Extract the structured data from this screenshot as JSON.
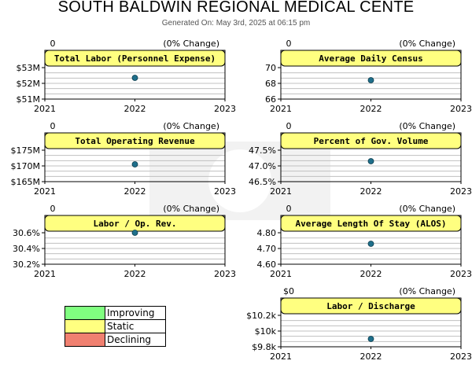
{
  "header": {
    "title": "SOUTH BALDWIN REGIONAL MEDICAL CENTE",
    "generated": "Generated On: May 3rd, 2025 at 06:15 pm"
  },
  "colors": {
    "banner": "#ffff80",
    "point": "#1f6f8b",
    "grid": "#c0c0c0",
    "improving": "#80ff80",
    "static": "#ffff80",
    "declining": "#f08070"
  },
  "legend": [
    {
      "label": "Improving",
      "color": "#80ff80"
    },
    {
      "label": "Static",
      "color": "#ffff80"
    },
    {
      "label": "Declining",
      "color": "#f08070"
    }
  ],
  "chart_data": [
    {
      "type": "scatter",
      "title": "Total Labor (Personnel Expense)",
      "prior": "0",
      "change": "(0% Change)",
      "x": [
        "2021",
        "2022",
        "2023"
      ],
      "yticks": [
        "$53M",
        "$52M",
        "$51M"
      ],
      "ylim": [
        51,
        53
      ],
      "points": [
        {
          "x": "2022",
          "y": 52.35
        }
      ]
    },
    {
      "type": "scatter",
      "title": "Average Daily Census",
      "prior": "0",
      "change": "(0% Change)",
      "x": [
        "2021",
        "2022",
        "2023"
      ],
      "yticks": [
        "70",
        "68",
        "66"
      ],
      "ylim": [
        66,
        70
      ],
      "points": [
        {
          "x": "2022",
          "y": 68.4
        }
      ]
    },
    {
      "type": "scatter",
      "title": "Total Operating Revenue",
      "prior": "0",
      "change": "(0% Change)",
      "x": [
        "2021",
        "2022",
        "2023"
      ],
      "yticks": [
        "$175M",
        "$170M",
        "$165M"
      ],
      "ylim": [
        165,
        175
      ],
      "points": [
        {
          "x": "2022",
          "y": 170.5
        }
      ]
    },
    {
      "type": "scatter",
      "title": "Percent of Gov. Volume",
      "prior": "0",
      "change": "(0% Change)",
      "x": [
        "2021",
        "2022",
        "2023"
      ],
      "yticks": [
        "47.5%",
        "47.0%",
        "46.5%"
      ],
      "ylim": [
        46.5,
        47.5
      ],
      "points": [
        {
          "x": "2022",
          "y": 47.15
        }
      ]
    },
    {
      "type": "scatter",
      "title": "Labor / Op. Rev.",
      "prior": "0",
      "change": "(0% Change)",
      "x": [
        "2021",
        "2022",
        "2023"
      ],
      "yticks": [
        "30.6%",
        "30.4%",
        "30.2%"
      ],
      "ylim": [
        30.2,
        30.6
      ],
      "points": [
        {
          "x": "2022",
          "y": 30.6
        }
      ]
    },
    {
      "type": "scatter",
      "title": "Average Length Of Stay (ALOS)",
      "prior": "0",
      "change": "(0% Change)",
      "x": [
        "2021",
        "2022",
        "2023"
      ],
      "yticks": [
        "4.80",
        "4.70",
        "4.60"
      ],
      "ylim": [
        4.6,
        4.8
      ],
      "points": [
        {
          "x": "2022",
          "y": 4.73
        }
      ]
    },
    {
      "type": "scatter",
      "title": "Labor / Discharge",
      "prior": "$0",
      "change": "(0% Change)",
      "x": [
        "2021",
        "2022",
        "2023"
      ],
      "yticks": [
        "$10.2k",
        "$10k",
        "$9.8k"
      ],
      "ylim": [
        9.8,
        10.2
      ],
      "points": [
        {
          "x": "2022",
          "y": 9.9
        }
      ]
    }
  ]
}
